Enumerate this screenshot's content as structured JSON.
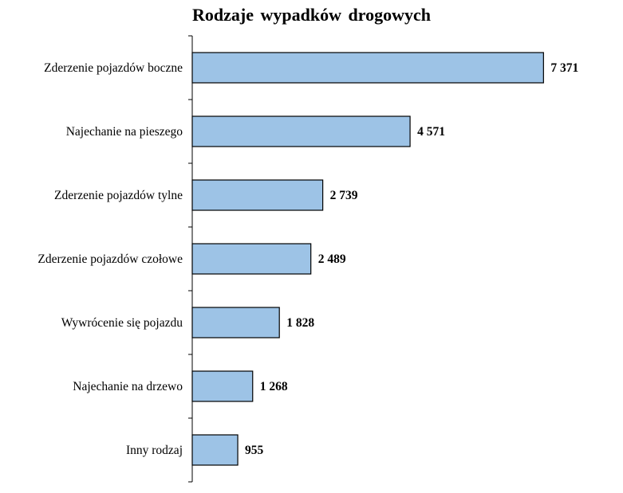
{
  "chart_data": {
    "type": "bar",
    "orientation": "horizontal",
    "title": "Rodzaje wypadków  drogowych",
    "categories": [
      "Zderzenie pojazdów boczne",
      "Najechanie na pieszego",
      "Zderzenie pojazdów tylne",
      "Zderzenie pojazdów czołowe",
      "Wywrócenie się pojazdu",
      "Najechanie na drzewo",
      "Inny rodzaj"
    ],
    "values": [
      7371,
      4571,
      2739,
      2489,
      1828,
      1268,
      955
    ],
    "value_labels": [
      "7 371",
      "4 571",
      "2 739",
      "2 489",
      "1 828",
      "1 268",
      "955"
    ],
    "xlim": [
      0,
      7700
    ],
    "grid": false,
    "legend": "none",
    "colors": {
      "bar_fill": "#9dc3e6",
      "bar_stroke": "#000000",
      "axis": "#000000"
    }
  }
}
